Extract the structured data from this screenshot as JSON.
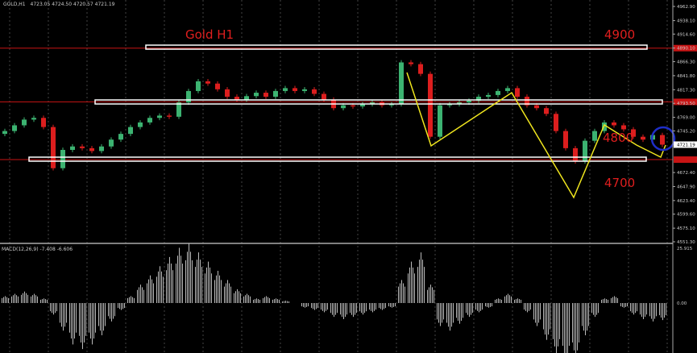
{
  "header": {
    "symbol": "GOLD,H1",
    "ohlc": "4723.05 4724.50 4720.57 4721.19"
  },
  "annotations": {
    "title": "Gold H1",
    "level_4900": "4900",
    "level_4800": "4800",
    "level_4700": "4700"
  },
  "colors": {
    "background": "#000000",
    "bull_candle": "#3cb371",
    "bear_candle": "#dc1e1e",
    "level_line": "#c81414",
    "zigzag": "#f0e61e",
    "circle": "#1e2ec8",
    "box": "#ffffff"
  },
  "chart_data": [
    {
      "type": "candlestick",
      "timeframe": "H1",
      "ylim": [
        4551.3,
        4962.9
      ],
      "price_ticks": [
        "4962.90",
        "4938.10",
        "4914.60",
        "4890.10",
        "4866.30",
        "4841.80",
        "4817.30",
        "4793.50",
        "4769.00",
        "4745.20",
        "4672.40",
        "4647.90",
        "4623.40",
        "4599.60",
        "4575.10",
        "4551.30"
      ],
      "current_price": "4721.19",
      "closes": [
        4745,
        4755,
        4765,
        4768,
        4752,
        4680,
        4712,
        4718,
        4715,
        4710,
        4718,
        4730,
        4740,
        4752,
        4760,
        4768,
        4772,
        4770,
        4795,
        4815,
        4832,
        4828,
        4818,
        4805,
        4800,
        4806,
        4812,
        4805,
        4815,
        4820,
        4815,
        4818,
        4810,
        4800,
        4785,
        4790,
        4788,
        4792,
        4795,
        4790,
        4792,
        4865,
        4862,
        4845,
        4735,
        4790,
        4792,
        4795,
        4798,
        4805,
        4808,
        4815,
        4820,
        4805,
        4790,
        4785,
        4775,
        4745,
        4715,
        4692,
        4728,
        4745,
        4760,
        4755,
        4748,
        4735,
        4730,
        4738,
        4721.19
      ],
      "horizontal_levels": [
        4890,
        4796,
        4695
      ],
      "grid": true
    },
    {
      "type": "bar",
      "title": "MACD(12,26,9) -7.408 -6.606",
      "ylim": [
        -30,
        25.915
      ],
      "ticks": [
        "25.915",
        "0.00"
      ],
      "values": [
        3,
        4,
        5,
        4,
        2,
        -5,
        -12,
        -18,
        -20,
        -18,
        -14,
        -8,
        -3,
        3,
        8,
        12,
        16,
        20,
        24,
        26,
        22,
        18,
        14,
        10,
        6,
        4,
        2,
        3,
        2,
        1,
        0,
        -2,
        -3,
        -4,
        -6,
        -7,
        -6,
        -5,
        -4,
        -3,
        -2,
        10,
        18,
        22,
        8,
        -10,
        -12,
        -9,
        -6,
        -4,
        -2,
        2,
        4,
        2,
        -4,
        -10,
        -16,
        -22,
        -26,
        -24,
        -14,
        -6,
        2,
        3,
        -2,
        -5,
        -7,
        -8,
        -7.4
      ]
    }
  ]
}
